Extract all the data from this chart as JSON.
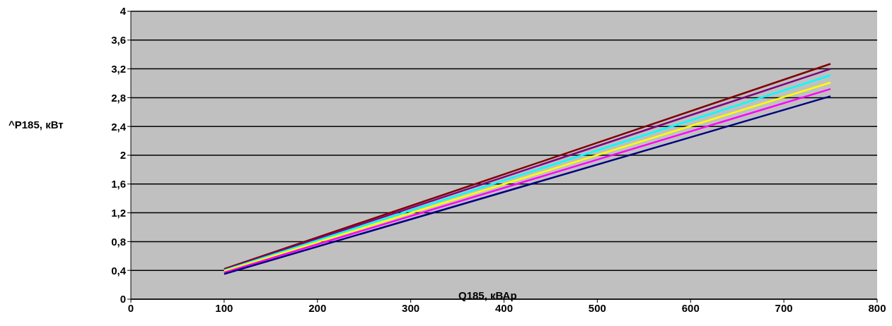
{
  "chart_data": {
    "type": "line",
    "xlabel": "Q185, кВАр",
    "ylabel": "^P185, кВт",
    "x": [
      100,
      750
    ],
    "series": [
      {
        "color": "#800000",
        "values": [
          0.42,
          3.27
        ]
      },
      {
        "color": "#800080",
        "values": [
          0.41,
          3.2
        ]
      },
      {
        "color": "#00ffff",
        "values": [
          0.4,
          3.11
        ]
      },
      {
        "color": "#ffff00",
        "values": [
          0.39,
          3.01
        ]
      },
      {
        "color": "#ff00ff",
        "values": [
          0.37,
          2.92
        ]
      },
      {
        "color": "#000080",
        "values": [
          0.35,
          2.82
        ]
      }
    ],
    "xlim": [
      0,
      800
    ],
    "xticks": [
      0,
      100,
      200,
      300,
      400,
      500,
      600,
      700,
      800
    ],
    "ylim": [
      0,
      4
    ],
    "yticks": [
      0,
      {
        "value": 0.4,
        "label": "0,4"
      },
      {
        "value": 0.8,
        "label": "0,8"
      },
      {
        "value": 1.2,
        "label": "1,2"
      },
      {
        "value": 1.6,
        "label": "1,6"
      },
      2,
      {
        "value": 2.4,
        "label": "2,4"
      },
      {
        "value": 2.8,
        "label": "2,8"
      },
      {
        "value": 3.2,
        "label": "3,2"
      },
      {
        "value": 3.6,
        "label": "3,6"
      },
      4
    ],
    "grid": "y",
    "legend": false,
    "marker": "none",
    "line_style": "solid"
  }
}
